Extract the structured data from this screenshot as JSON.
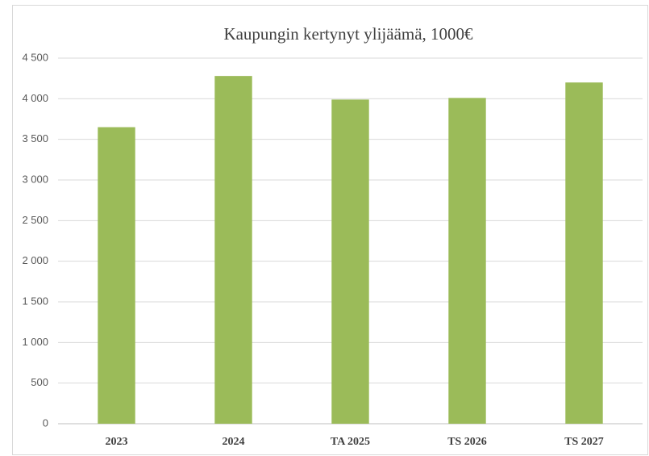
{
  "chart_data": {
    "type": "bar",
    "title": "Kaupungin kertynyt ylijäämä, 1000€",
    "categories": [
      "2023",
      "2024",
      "TA 2025",
      "TS 2026",
      "TS 2027"
    ],
    "values": [
      3650,
      4280,
      3990,
      4010,
      4200
    ],
    "color": "#9bbb59",
    "ylim": [
      0,
      4500
    ],
    "yticks": [
      0,
      500,
      {
        "value": 1000,
        "label": "1 000"
      },
      {
        "value": 1500,
        "label": "1 500"
      },
      {
        "value": 2000,
        "label": "2 000"
      },
      {
        "value": 2500,
        "label": "2 500"
      },
      {
        "value": 3000,
        "label": "3 000"
      },
      {
        "value": 3500,
        "label": "3 500"
      },
      {
        "value": 4000,
        "label": "4 000"
      },
      {
        "value": 4500,
        "label": "4 500"
      }
    ],
    "grid": true
  }
}
